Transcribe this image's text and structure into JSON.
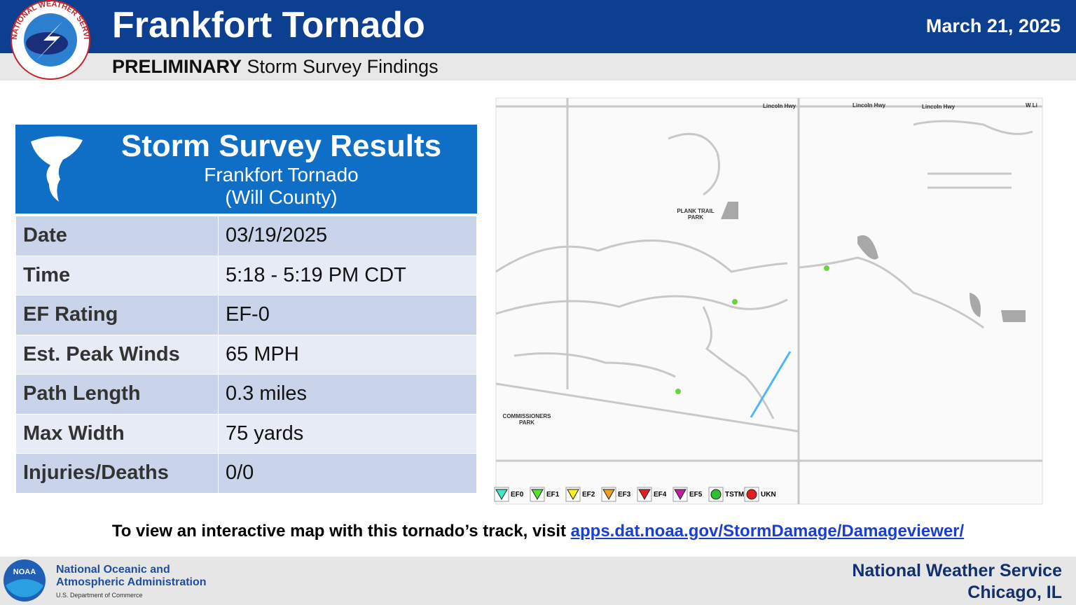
{
  "header": {
    "title": "Frankfort Tornado",
    "date": "March 21, 2025",
    "subtitle_bold": "PRELIMINARY",
    "subtitle": "Storm Survey Findings",
    "logo_text": "NATIONAL WEATHER SERVICE"
  },
  "results": {
    "title": "Storm Survey Results",
    "subtitle_1": "Frankfort Tornado",
    "subtitle_2": "(Will County)",
    "rows": [
      [
        "Date",
        "03/19/2025"
      ],
      [
        "Time",
        "5:18 - 5:19 PM CDT"
      ],
      [
        "EF Rating",
        "EF-0"
      ],
      [
        "Est. Peak Winds",
        "65 MPH"
      ],
      [
        "Path Length",
        "0.3 miles"
      ],
      [
        "Max Width",
        "75 yards"
      ],
      [
        "Injuries/Deaths",
        "0/0"
      ]
    ]
  },
  "map": {
    "road_labels": [
      "Lincoln Hwy",
      "Lincoln Hwy",
      "Lincoln Hwy",
      "W Li"
    ],
    "place_labels": [
      [
        "PLANK TRAIL",
        "PARK"
      ],
      [
        "COMMISSIONERS",
        "PARK"
      ]
    ],
    "legend": [
      "EF0",
      "EF1",
      "EF2",
      "EF3",
      "EF4",
      "EF5",
      "TSTM",
      "UKN"
    ]
  },
  "footer": {
    "link_intro": "To view an interactive map with this tornado’s track, visit",
    "link": "apps.dat.noaa.gov/StormDamage/Damageviewer/",
    "noaa_logo": "NOAA",
    "agency_1": "National Oceanic and",
    "agency_2": "Atmospheric Administration",
    "department": "U.S. Department of Commerce",
    "office_1": "National Weather Service",
    "office_2": "Chicago, IL"
  }
}
